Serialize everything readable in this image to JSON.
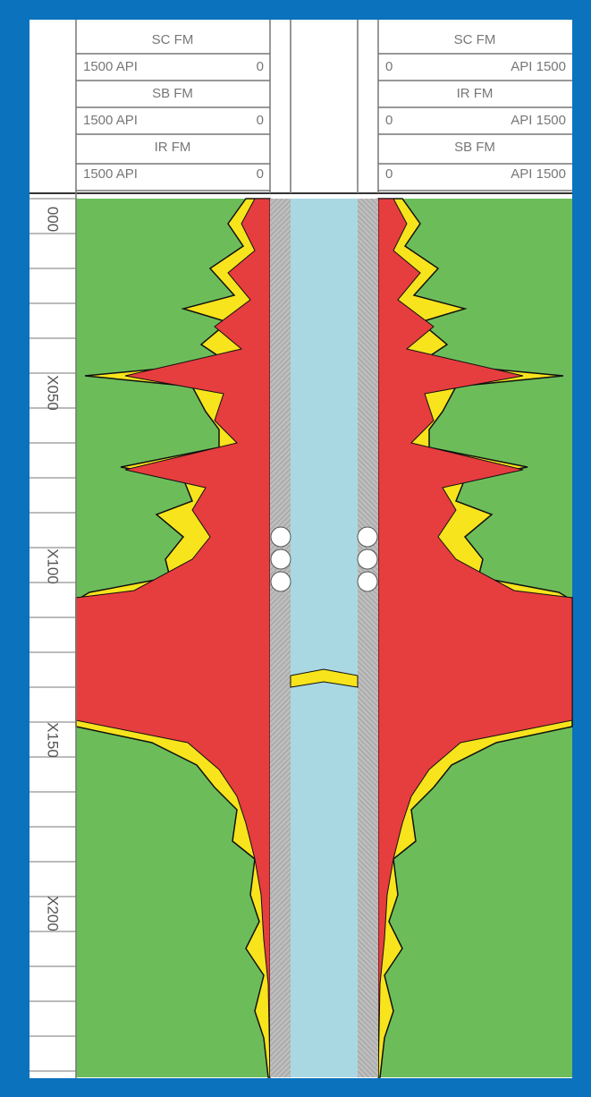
{
  "header": {
    "left": [
      {
        "name": "SC FM",
        "left": "1500 API",
        "right": "0"
      },
      {
        "name": "SB FM",
        "left": "1500 API",
        "right": "0"
      },
      {
        "name": "IR FM",
        "left": "1500 API",
        "right": "0"
      }
    ],
    "right": [
      {
        "name": "SC FM",
        "left": "0",
        "right": "API 1500"
      },
      {
        "name": "IR FM",
        "left": "0",
        "right": "API 1500"
      },
      {
        "name": "SB FM",
        "left": "0",
        "right": "API 1500"
      }
    ]
  },
  "depth_labels": [
    "000",
    "X050",
    "X100",
    "X150",
    "X200"
  ]
}
